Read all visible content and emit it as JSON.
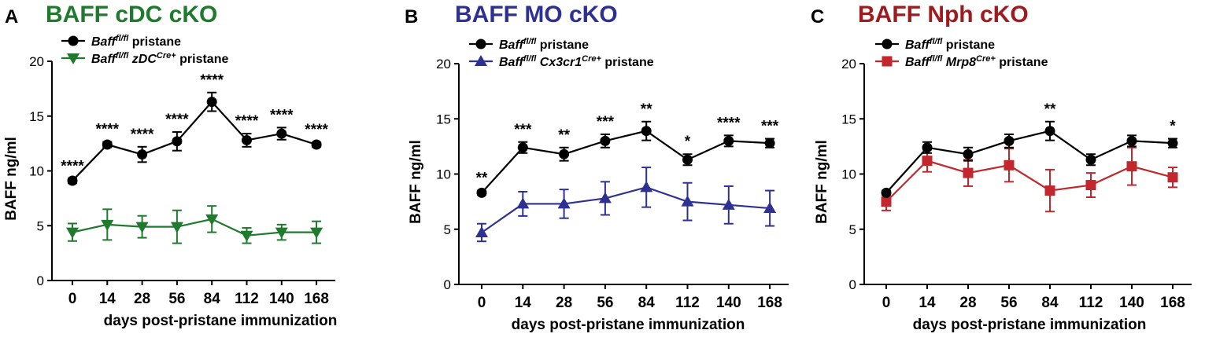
{
  "colors": {
    "black": "#000000",
    "green": "#1f7a2e",
    "blue": "#2e3192",
    "red": "#c1272d",
    "title_green": "#1f7a2e",
    "title_blue": "#2e3192",
    "title_red": "#9e1b1f"
  },
  "chart_data": [
    {
      "type": "line",
      "panel_letter": "A",
      "title": "BAFF cDC cKO",
      "title_color": "#1f7a2e",
      "xlabel": "days post-pristane immunization",
      "ylabel": "BAFF ng/ml",
      "ylim": [
        0,
        20
      ],
      "yticks": [
        0,
        5,
        10,
        15,
        20
      ],
      "categories": [
        "0",
        "14",
        "28",
        "56",
        "84",
        "112",
        "140",
        "168"
      ],
      "series": [
        {
          "name_main": "Baff",
          "name_sup1": "fl/fl",
          "name_mid": "",
          "name_sup2": "",
          "name_tail": "pristane",
          "color": "#000000",
          "marker": "circle",
          "values": [
            9.1,
            12.4,
            11.5,
            12.7,
            16.3,
            12.8,
            13.4,
            12.4
          ],
          "errors": [
            0.2,
            0.25,
            0.7,
            0.85,
            0.85,
            0.6,
            0.55,
            0.2
          ]
        },
        {
          "name_main": "Baff",
          "name_sup1": "fl/fl",
          "name_mid": "zDC",
          "name_sup2": "Cre+",
          "name_tail": "pristane",
          "color": "#1f7a2e",
          "marker": "triangle-down",
          "values": [
            4.4,
            5.1,
            4.9,
            4.9,
            5.6,
            4.1,
            4.4,
            4.4
          ],
          "errors": [
            0.8,
            1.4,
            1.0,
            1.5,
            1.2,
            0.7,
            0.7,
            1.0
          ]
        }
      ],
      "annotations": [
        "****",
        "****",
        "****",
        "****",
        "****",
        "****",
        "****",
        "****"
      ]
    },
    {
      "type": "line",
      "panel_letter": "B",
      "title": "BAFF MO cKO",
      "title_color": "#2e3192",
      "xlabel": "days post-pristane immunization",
      "ylabel": "BAFF ng/ml",
      "ylim": [
        0,
        20
      ],
      "yticks": [
        0,
        5,
        10,
        15,
        20
      ],
      "categories": [
        "0",
        "14",
        "28",
        "56",
        "84",
        "112",
        "140",
        "168"
      ],
      "series": [
        {
          "name_main": "Baff",
          "name_sup1": "fl/fl",
          "name_mid": "",
          "name_sup2": "",
          "name_tail": "pristane",
          "color": "#000000",
          "marker": "circle",
          "values": [
            8.3,
            12.4,
            11.8,
            13.0,
            13.9,
            11.3,
            13.0,
            12.8
          ],
          "errors": [
            0.2,
            0.5,
            0.6,
            0.6,
            0.85,
            0.5,
            0.5,
            0.4
          ]
        },
        {
          "name_main": "Baff",
          "name_sup1": "fl/fl",
          "name_mid": "Cx3cr1",
          "name_sup2": "Cre+",
          "name_tail": "pristane",
          "color": "#2e3192",
          "marker": "triangle-up",
          "values": [
            4.7,
            7.3,
            7.3,
            7.8,
            8.8,
            7.5,
            7.2,
            6.9
          ],
          "errors": [
            0.8,
            1.1,
            1.3,
            1.5,
            1.8,
            1.7,
            1.7,
            1.6
          ]
        }
      ],
      "annotations": [
        "**",
        "***",
        "**",
        "***",
        "**",
        "*",
        "****",
        "***"
      ]
    },
    {
      "type": "line",
      "panel_letter": "C",
      "title": "BAFF Nph cKO",
      "title_color": "#9e1b1f",
      "xlabel": "days post-pristane immunization",
      "ylabel": "BAFF ng/ml",
      "ylim": [
        0,
        20
      ],
      "yticks": [
        0,
        5,
        10,
        15,
        20
      ],
      "categories": [
        "0",
        "14",
        "28",
        "56",
        "84",
        "112",
        "140",
        "168"
      ],
      "series": [
        {
          "name_main": "Baff",
          "name_sup1": "fl/fl",
          "name_mid": "",
          "name_sup2": "",
          "name_tail": "pristane",
          "color": "#000000",
          "marker": "circle",
          "values": [
            8.3,
            12.4,
            11.8,
            13.0,
            13.9,
            11.3,
            13.0,
            12.8
          ],
          "errors": [
            0.2,
            0.5,
            0.6,
            0.6,
            0.85,
            0.5,
            0.5,
            0.4
          ]
        },
        {
          "name_main": "Baff",
          "name_sup1": "fl/fl",
          "name_mid": "Mrp8",
          "name_sup2": "Cre+",
          "name_tail": "pristane",
          "color": "#c1272d",
          "marker": "square",
          "values": [
            7.5,
            11.2,
            10.1,
            10.8,
            8.5,
            9.0,
            10.7,
            9.7
          ],
          "errors": [
            0.8,
            1.0,
            1.2,
            1.5,
            1.9,
            1.1,
            1.7,
            0.9
          ]
        }
      ],
      "annotations": [
        "",
        "",
        "",
        "",
        "**",
        "",
        "",
        "*"
      ]
    }
  ]
}
